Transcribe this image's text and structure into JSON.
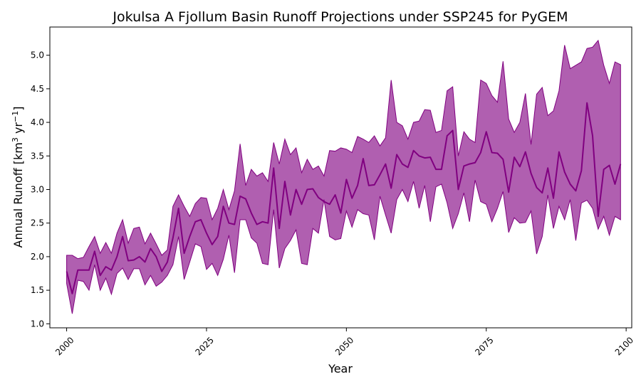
{
  "chart_data": {
    "type": "area",
    "title": "Jokulsa A Fjollum Basin Runoff Projections under SSP245 for PyGEM",
    "xlabel": "Year",
    "ylabel_main": "Annual Runoff [km",
    "ylabel_sup1": "3",
    "ylabel_mid": " yr",
    "ylabel_sup2": "−1",
    "ylabel_end": "]",
    "xlim": [
      1997,
      2101
    ],
    "ylim": [
      0.94,
      5.42
    ],
    "x_ticks": [
      2000,
      2025,
      2050,
      2075,
      2100
    ],
    "x_tick_labels": [
      "2000",
      "2025",
      "2050",
      "2075",
      "2100"
    ],
    "y_ticks": [
      1.0,
      1.5,
      2.0,
      2.5,
      3.0,
      3.5,
      4.0,
      4.5,
      5.0
    ],
    "y_tick_labels": [
      "1.0",
      "1.5",
      "2.0",
      "2.5",
      "3.0",
      "3.5",
      "4.0",
      "4.5",
      "5.0"
    ],
    "grid": false,
    "legend": "none",
    "colors": {
      "line": "#800080",
      "fill": "#b05fb0"
    },
    "x": [
      2000,
      2001,
      2002,
      2003,
      2004,
      2005,
      2006,
      2007,
      2008,
      2009,
      2010,
      2011,
      2012,
      2013,
      2014,
      2015,
      2016,
      2017,
      2018,
      2019,
      2020,
      2021,
      2022,
      2023,
      2024,
      2025,
      2026,
      2027,
      2028,
      2029,
      2030,
      2031,
      2032,
      2033,
      2034,
      2035,
      2036,
      2037,
      2038,
      2039,
      2040,
      2041,
      2042,
      2043,
      2044,
      2045,
      2046,
      2047,
      2048,
      2049,
      2050,
      2051,
      2052,
      2053,
      2054,
      2055,
      2056,
      2057,
      2058,
      2059,
      2060,
      2061,
      2062,
      2063,
      2064,
      2065,
      2066,
      2067,
      2068,
      2069,
      2070,
      2071,
      2072,
      2073,
      2074,
      2075,
      2076,
      2077,
      2078,
      2079,
      2080,
      2081,
      2082,
      2083,
      2084,
      2085,
      2086,
      2087,
      2088,
      2089,
      2090,
      2091,
      2092,
      2093,
      2094,
      2095,
      2096,
      2097,
      2098,
      2099
    ],
    "series": [
      {
        "role": "median",
        "values": [
          1.78,
          1.45,
          1.8,
          1.8,
          1.8,
          2.08,
          1.72,
          1.85,
          1.8,
          2.0,
          2.3,
          1.94,
          1.95,
          2.0,
          1.92,
          2.12,
          2.0,
          1.78,
          1.92,
          2.28,
          2.72,
          2.05,
          2.3,
          2.52,
          2.55,
          2.35,
          2.18,
          2.3,
          2.75,
          2.5,
          2.48,
          2.9,
          2.86,
          2.65,
          2.48,
          2.52,
          2.5,
          3.32,
          2.42,
          3.12,
          2.62,
          3.0,
          2.78,
          3.0,
          3.01,
          2.88,
          2.82,
          2.78,
          2.92,
          2.65,
          3.15,
          2.87,
          3.06,
          3.46,
          3.06,
          3.07,
          3.22,
          3.38,
          3.02,
          3.52,
          3.38,
          3.33,
          3.58,
          3.5,
          3.47,
          3.48,
          3.3,
          3.3,
          3.8,
          3.88,
          3.0,
          3.35,
          3.38,
          3.4,
          3.55,
          3.86,
          3.55,
          3.54,
          3.45,
          2.96,
          3.48,
          3.34,
          3.56,
          3.24,
          3.03,
          2.95,
          3.32,
          2.87,
          3.56,
          3.26,
          3.08,
          2.98,
          3.28,
          4.29,
          3.8,
          2.6,
          3.3,
          3.36,
          3.08,
          3.38
        ]
      },
      {
        "role": "upper",
        "values": [
          2.02,
          2.02,
          1.97,
          1.99,
          2.15,
          2.3,
          2.05,
          2.21,
          2.05,
          2.35,
          2.55,
          2.2,
          2.42,
          2.44,
          2.19,
          2.35,
          2.19,
          2.02,
          2.1,
          2.75,
          2.92,
          2.75,
          2.6,
          2.79,
          2.88,
          2.87,
          2.55,
          2.72,
          3.0,
          2.7,
          2.98,
          3.68,
          3.06,
          3.3,
          3.2,
          3.25,
          3.12,
          3.7,
          3.38,
          3.75,
          3.52,
          3.62,
          3.25,
          3.45,
          3.3,
          3.35,
          3.2,
          3.58,
          3.57,
          3.62,
          3.6,
          3.55,
          3.79,
          3.75,
          3.7,
          3.8,
          3.65,
          3.77,
          4.63,
          4.0,
          3.95,
          3.75,
          4.0,
          4.02,
          4.19,
          4.18,
          3.85,
          3.88,
          4.47,
          4.53,
          3.5,
          3.86,
          3.75,
          3.7,
          4.63,
          4.58,
          4.4,
          4.3,
          4.91,
          4.05,
          3.85,
          4.0,
          4.43,
          3.67,
          4.42,
          4.52,
          4.1,
          4.17,
          4.47,
          5.15,
          4.8,
          4.85,
          4.9,
          5.1,
          5.12,
          5.22,
          4.85,
          4.58,
          4.9,
          4.86
        ]
      },
      {
        "role": "lower",
        "values": [
          1.6,
          1.15,
          1.65,
          1.63,
          1.5,
          1.88,
          1.5,
          1.68,
          1.44,
          1.75,
          1.83,
          1.66,
          1.82,
          1.82,
          1.58,
          1.72,
          1.56,
          1.62,
          1.72,
          1.88,
          2.3,
          1.66,
          1.92,
          2.19,
          2.15,
          1.81,
          1.9,
          1.72,
          1.96,
          2.32,
          1.76,
          2.55,
          2.55,
          2.28,
          2.2,
          1.9,
          1.88,
          2.7,
          1.83,
          2.12,
          2.24,
          2.4,
          1.9,
          1.88,
          2.42,
          2.35,
          2.85,
          2.3,
          2.25,
          2.27,
          2.68,
          2.44,
          2.7,
          2.64,
          2.62,
          2.25,
          2.9,
          2.62,
          2.35,
          2.85,
          3.0,
          2.82,
          3.12,
          2.72,
          3.06,
          2.52,
          3.04,
          3.08,
          2.8,
          2.42,
          2.64,
          2.95,
          2.52,
          3.14,
          2.82,
          2.78,
          2.52,
          2.72,
          2.97,
          2.36,
          2.58,
          2.5,
          2.51,
          2.68,
          2.04,
          2.3,
          2.92,
          2.42,
          2.75,
          2.55,
          2.85,
          2.24,
          2.8,
          2.84,
          2.72,
          2.41,
          2.6,
          2.32,
          2.6,
          2.55
        ]
      }
    ]
  }
}
